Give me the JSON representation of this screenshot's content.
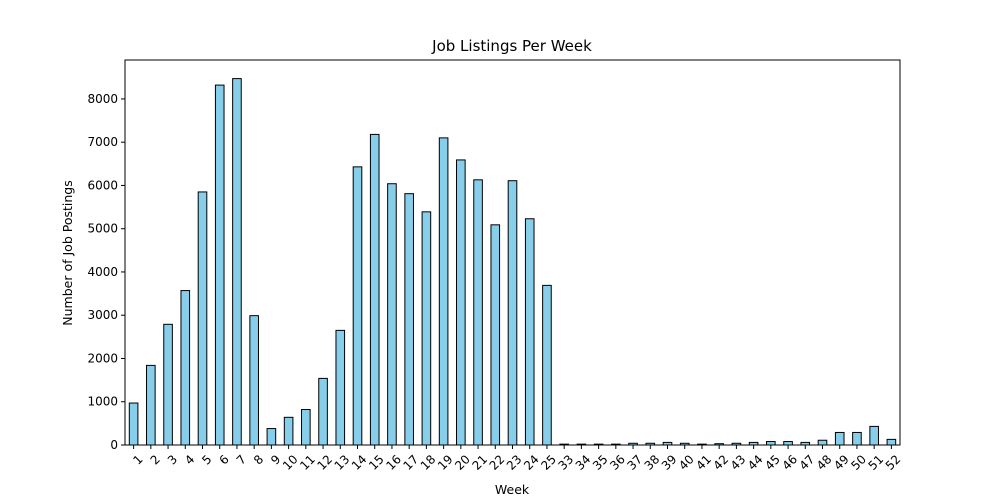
{
  "chart_data": {
    "type": "bar",
    "title": "Job Listings Per Week",
    "xlabel": "Week",
    "ylabel": "Number of Job Postings",
    "categories": [
      "1",
      "2",
      "3",
      "4",
      "5",
      "6",
      "7",
      "8",
      "9",
      "10",
      "11",
      "12",
      "13",
      "14",
      "15",
      "16",
      "17",
      "18",
      "19",
      "20",
      "21",
      "22",
      "23",
      "24",
      "25",
      "33",
      "34",
      "35",
      "36",
      "37",
      "38",
      "39",
      "40",
      "41",
      "42",
      "43",
      "44",
      "45",
      "46",
      "47",
      "48",
      "49",
      "50",
      "51",
      "52"
    ],
    "values": [
      970,
      1840,
      2790,
      3570,
      5850,
      8320,
      8470,
      2990,
      380,
      640,
      820,
      1540,
      2650,
      6430,
      7180,
      6040,
      5810,
      5390,
      7100,
      6590,
      6130,
      5090,
      6110,
      5230,
      3690,
      20,
      20,
      20,
      20,
      40,
      40,
      60,
      40,
      20,
      30,
      40,
      60,
      80,
      80,
      60,
      110,
      290,
      290,
      430,
      130
    ],
    "ylim": [
      0,
      8900
    ],
    "yticks": [
      0,
      1000,
      2000,
      3000,
      4000,
      5000,
      6000,
      7000,
      8000
    ],
    "bar_color": "#87ceeb",
    "grid": false,
    "legend": "none"
  }
}
